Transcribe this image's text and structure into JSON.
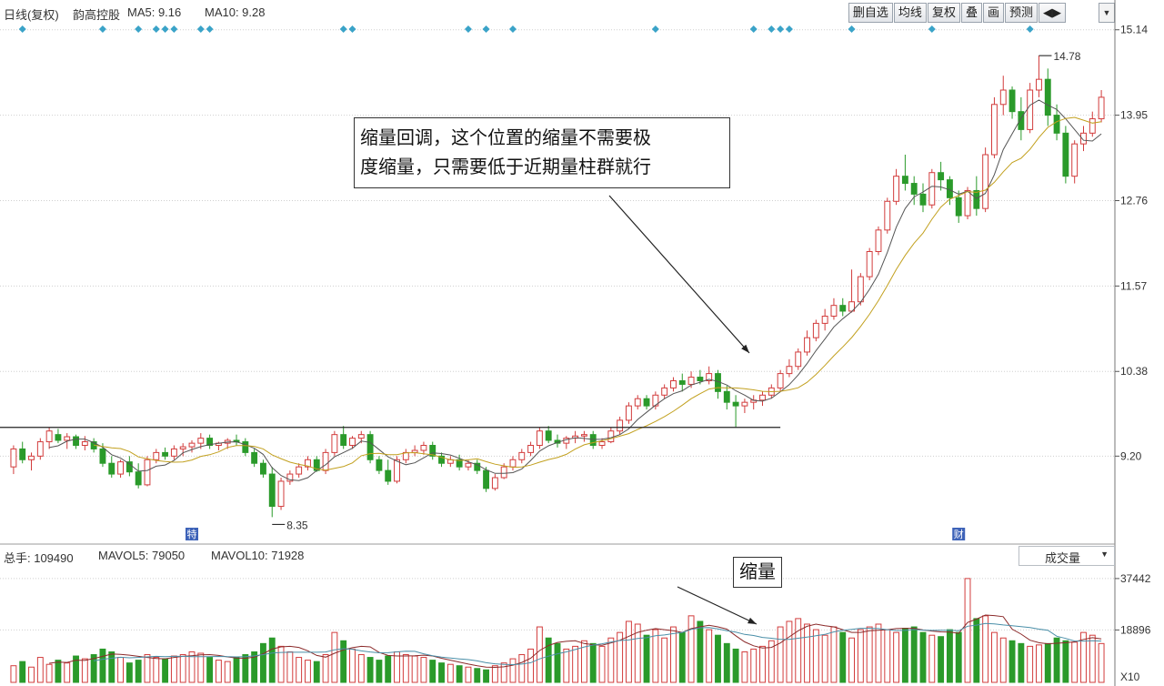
{
  "header": {
    "period_label": "日线(复权)",
    "stock_name": "韵高控股",
    "ma5": "MA5: 9.16",
    "ma10": "MA10: 9.28",
    "toolbar_buttons": [
      "删自选",
      "均线",
      "复权",
      "叠",
      "画",
      "预测",
      "◀▶"
    ]
  },
  "volume_header": {
    "total_label": "总手: 109490",
    "mavol5": "MAVOL5: 79050",
    "mavol10": "MAVOL10: 71928",
    "indicator_select": "成交量"
  },
  "annotations": {
    "main_text_line1": "缩量回调，这个位置的缩量不需要极",
    "main_text_line2": "度缩量，只需要低于近期量柱群就行",
    "volume_text": "缩量",
    "high_marker": "14.78",
    "low_marker": "8.35",
    "event_marker_left": "特",
    "event_marker_right": "财"
  },
  "chart_data": [
    {
      "type": "candlestick",
      "price_axis_ticks": [
        15.14,
        13.95,
        12.76,
        11.57,
        10.38,
        9.2
      ],
      "ylim": [
        8.0,
        15.2
      ],
      "grid": true,
      "support_line": 9.6,
      "marked_high": 14.78,
      "marked_low": 8.35,
      "ohlc": [
        [
          9.05,
          9.35,
          8.95,
          9.3
        ],
        [
          9.3,
          9.4,
          9.1,
          9.15
        ],
        [
          9.15,
          9.25,
          9.0,
          9.2
        ],
        [
          9.2,
          9.45,
          9.15,
          9.4
        ],
        [
          9.4,
          9.6,
          9.3,
          9.55
        ],
        [
          9.5,
          9.58,
          9.38,
          9.42
        ],
        [
          9.42,
          9.52,
          9.3,
          9.47
        ],
        [
          9.47,
          9.5,
          9.3,
          9.35
        ],
        [
          9.35,
          9.48,
          9.28,
          9.4
        ],
        [
          9.4,
          9.45,
          9.25,
          9.3
        ],
        [
          9.3,
          9.38,
          9.05,
          9.1
        ],
        [
          9.1,
          9.2,
          8.9,
          8.95
        ],
        [
          8.95,
          9.15,
          8.9,
          9.12
        ],
        [
          9.12,
          9.2,
          8.92,
          8.98
        ],
        [
          8.98,
          9.1,
          8.75,
          8.8
        ],
        [
          8.8,
          9.2,
          8.78,
          9.15
        ],
        [
          9.15,
          9.3,
          9.1,
          9.25
        ],
        [
          9.25,
          9.32,
          9.15,
          9.2
        ],
        [
          9.2,
          9.35,
          9.15,
          9.3
        ],
        [
          9.3,
          9.38,
          9.2,
          9.33
        ],
        [
          9.33,
          9.42,
          9.25,
          9.38
        ],
        [
          9.38,
          9.52,
          9.3,
          9.45
        ],
        [
          9.45,
          9.5,
          9.3,
          9.35
        ],
        [
          9.35,
          9.4,
          9.28,
          9.38
        ],
        [
          9.38,
          9.45,
          9.3,
          9.42
        ],
        [
          9.42,
          9.5,
          9.35,
          9.4
        ],
        [
          9.4,
          9.45,
          9.2,
          9.25
        ],
        [
          9.25,
          9.3,
          9.05,
          9.1
        ],
        [
          9.1,
          9.15,
          8.9,
          8.95
        ],
        [
          8.95,
          9.05,
          8.35,
          8.5
        ],
        [
          8.5,
          8.9,
          8.45,
          8.85
        ],
        [
          8.85,
          9.0,
          8.8,
          8.95
        ],
        [
          8.95,
          9.1,
          8.9,
          9.05
        ],
        [
          9.05,
          9.2,
          9.0,
          9.15
        ],
        [
          9.15,
          9.2,
          8.98,
          9.0
        ],
        [
          9.0,
          9.3,
          8.95,
          9.25
        ],
        [
          9.25,
          9.55,
          9.2,
          9.5
        ],
        [
          9.5,
          9.62,
          9.3,
          9.35
        ],
        [
          9.35,
          9.48,
          9.3,
          9.45
        ],
        [
          9.45,
          9.55,
          9.38,
          9.5
        ],
        [
          9.5,
          9.55,
          9.1,
          9.15
        ],
        [
          9.15,
          9.2,
          8.95,
          9.0
        ],
        [
          9.0,
          9.15,
          8.8,
          8.85
        ],
        [
          8.85,
          9.2,
          8.82,
          9.15
        ],
        [
          9.15,
          9.3,
          9.1,
          9.25
        ],
        [
          9.25,
          9.35,
          9.2,
          9.28
        ],
        [
          9.28,
          9.4,
          9.22,
          9.35
        ],
        [
          9.35,
          9.4,
          9.15,
          9.2
        ],
        [
          9.2,
          9.25,
          9.05,
          9.1
        ],
        [
          9.1,
          9.2,
          9.05,
          9.15
        ],
        [
          9.15,
          9.22,
          9.0,
          9.05
        ],
        [
          9.05,
          9.15,
          9.0,
          9.1
        ],
        [
          9.1,
          9.15,
          8.95,
          9.0
        ],
        [
          9.0,
          9.05,
          8.7,
          8.75
        ],
        [
          8.75,
          8.95,
          8.72,
          8.9
        ],
        [
          8.9,
          9.1,
          8.88,
          9.05
        ],
        [
          9.05,
          9.2,
          9.0,
          9.15
        ],
        [
          9.15,
          9.3,
          9.1,
          9.25
        ],
        [
          9.25,
          9.4,
          9.2,
          9.35
        ],
        [
          9.35,
          9.6,
          9.3,
          9.55
        ],
        [
          9.55,
          9.62,
          9.38,
          9.42
        ],
        [
          9.42,
          9.5,
          9.32,
          9.38
        ],
        [
          9.38,
          9.48,
          9.3,
          9.45
        ],
        [
          9.45,
          9.55,
          9.38,
          9.48
        ],
        [
          9.48,
          9.55,
          9.4,
          9.5
        ],
        [
          9.5,
          9.55,
          9.3,
          9.35
        ],
        [
          9.35,
          9.45,
          9.3,
          9.4
        ],
        [
          9.4,
          9.6,
          9.38,
          9.55
        ],
        [
          9.55,
          9.75,
          9.5,
          9.7
        ],
        [
          9.7,
          9.95,
          9.65,
          9.9
        ],
        [
          9.9,
          10.05,
          9.85,
          10.0
        ],
        [
          10.0,
          10.05,
          9.85,
          9.9
        ],
        [
          9.9,
          10.1,
          9.85,
          10.05
        ],
        [
          10.05,
          10.2,
          10.0,
          10.15
        ],
        [
          10.15,
          10.3,
          10.1,
          10.25
        ],
        [
          10.25,
          10.35,
          10.1,
          10.2
        ],
        [
          10.2,
          10.38,
          10.15,
          10.3
        ],
        [
          10.3,
          10.4,
          10.2,
          10.25
        ],
        [
          10.25,
          10.45,
          10.2,
          10.35
        ],
        [
          10.35,
          10.4,
          10.0,
          10.1
        ],
        [
          10.1,
          10.18,
          9.85,
          9.95
        ],
        [
          9.95,
          10.05,
          9.6,
          9.9
        ],
        [
          9.9,
          10.0,
          9.8,
          9.95
        ],
        [
          9.95,
          10.05,
          9.85,
          9.98
        ],
        [
          9.98,
          10.1,
          9.9,
          10.05
        ],
        [
          10.05,
          10.2,
          10.0,
          10.15
        ],
        [
          10.15,
          10.4,
          10.1,
          10.35
        ],
        [
          10.35,
          10.55,
          10.3,
          10.45
        ],
        [
          10.45,
          10.7,
          10.4,
          10.65
        ],
        [
          10.65,
          10.95,
          10.6,
          10.85
        ],
        [
          10.85,
          11.1,
          10.8,
          11.05
        ],
        [
          11.05,
          11.25,
          10.95,
          11.15
        ],
        [
          11.15,
          11.4,
          11.1,
          11.3
        ],
        [
          11.3,
          11.4,
          11.15,
          11.22
        ],
        [
          11.22,
          11.8,
          11.2,
          11.35
        ],
        [
          11.35,
          11.75,
          11.3,
          11.7
        ],
        [
          11.7,
          12.1,
          11.65,
          12.05
        ],
        [
          12.05,
          12.4,
          12.0,
          12.35
        ],
        [
          12.35,
          12.8,
          12.3,
          12.75
        ],
        [
          12.75,
          13.2,
          12.7,
          13.1
        ],
        [
          13.1,
          13.4,
          12.9,
          13.0
        ],
        [
          13.0,
          13.1,
          12.7,
          12.85
        ],
        [
          12.85,
          13.0,
          12.6,
          12.7
        ],
        [
          12.7,
          13.2,
          12.65,
          13.15
        ],
        [
          13.15,
          13.3,
          12.9,
          13.05
        ],
        [
          13.05,
          13.1,
          12.7,
          12.8
        ],
        [
          12.8,
          12.9,
          12.45,
          12.55
        ],
        [
          12.55,
          12.95,
          12.5,
          12.9
        ],
        [
          12.9,
          13.1,
          12.55,
          12.65
        ],
        [
          12.65,
          13.5,
          12.6,
          13.4
        ],
        [
          13.4,
          14.2,
          13.35,
          14.1
        ],
        [
          14.1,
          14.5,
          13.95,
          14.3
        ],
        [
          14.3,
          14.35,
          13.9,
          14.0
        ],
        [
          14.0,
          14.2,
          13.6,
          13.75
        ],
        [
          13.75,
          14.4,
          13.7,
          14.3
        ],
        [
          14.3,
          14.78,
          14.2,
          14.45
        ],
        [
          14.45,
          14.6,
          13.8,
          13.95
        ],
        [
          13.95,
          14.1,
          13.6,
          13.7
        ],
        [
          13.7,
          13.8,
          13.0,
          13.1
        ],
        [
          13.1,
          13.6,
          13.0,
          13.55
        ],
        [
          13.55,
          13.8,
          13.45,
          13.7
        ],
        [
          13.7,
          14.0,
          13.65,
          13.9
        ],
        [
          13.9,
          14.3,
          13.85,
          14.2
        ]
      ],
      "markers": [
        "特",
        "财"
      ]
    },
    {
      "type": "bar",
      "name": "volume",
      "axis_ticks": [
        37442,
        18896
      ],
      "unit_label": "X10",
      "ylim": [
        0,
        42000
      ],
      "values": [
        6000,
        7500,
        5500,
        9000,
        6500,
        8000,
        7000,
        9500,
        8500,
        10000,
        12000,
        11000,
        9000,
        7000,
        8000,
        10000,
        9000,
        8500,
        9500,
        10000,
        11000,
        10500,
        9000,
        8000,
        7500,
        9000,
        10000,
        11000,
        14000,
        16000,
        13000,
        11000,
        9000,
        8000,
        7500,
        10000,
        18000,
        15000,
        12000,
        10000,
        9000,
        8000,
        9500,
        11000,
        10000,
        9500,
        9000,
        8000,
        7000,
        6500,
        6000,
        5500,
        5000,
        4500,
        6000,
        7000,
        8500,
        10000,
        12000,
        20000,
        16000,
        14000,
        12000,
        13000,
        15000,
        14000,
        13000,
        16000,
        18000,
        22000,
        21000,
        17000,
        19000,
        16000,
        20000,
        18000,
        24000,
        22000,
        19000,
        17000,
        14000,
        12000,
        11000,
        12000,
        13000,
        15000,
        20000,
        22000,
        23000,
        21000,
        19000,
        17000,
        20000,
        18000,
        16000,
        19000,
        20000,
        21000,
        19000,
        18000,
        19500,
        20000,
        18000,
        17000,
        16500,
        19000,
        18000,
        37442,
        23000,
        24000,
        18000,
        16000,
        15000,
        14000,
        13000,
        13500,
        14000,
        16000,
        15000,
        14500,
        18000,
        17000,
        14000
      ]
    }
  ]
}
